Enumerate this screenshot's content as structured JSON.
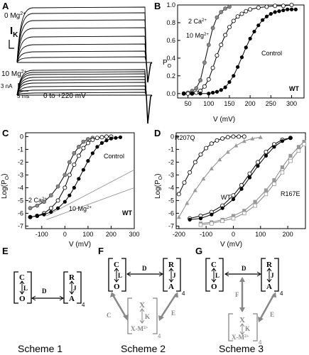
{
  "panels": {
    "A": "A",
    "B": "B",
    "C": "C",
    "D": "D",
    "E": "E",
    "F": "F",
    "G": "G"
  },
  "panelA": {
    "label_top": "0 Mg",
    "label_top_sup": "2+",
    "current_symbol": "I",
    "current_sub": "K",
    "label_bottom": "10 Mg",
    "label_bottom_sup": "2+",
    "scale_current": "3 nA",
    "scale_time": "5 ms",
    "voltage_range": "0 to +220 mV"
  },
  "chart_data": [
    {
      "panel": "B",
      "type": "scatter",
      "xlabel": "V (mV)",
      "ylabel": "P",
      "ylabel_sub": "O",
      "xlim": [
        25,
        330
      ],
      "ylim": [
        -0.05,
        1.0
      ],
      "xticks": [
        50,
        100,
        150,
        200,
        250,
        300
      ],
      "yticks": [
        "0.0",
        "0.2",
        "0.4",
        "0.6",
        "0.8",
        "1.0"
      ],
      "annotation": "WT",
      "series": [
        {
          "name": "2 Ca",
          "name_sup": "2+",
          "marker": "gray-filled",
          "x": [
            40,
            50,
            60,
            70,
            80,
            90,
            100,
            110,
            120,
            130,
            140,
            150
          ],
          "y": [
            0.0,
            0.01,
            0.03,
            0.06,
            0.15,
            0.35,
            0.55,
            0.74,
            0.86,
            0.92,
            0.96,
            0.98
          ]
        },
        {
          "name": "10 Mg",
          "name_sup": "2+",
          "marker": "open",
          "x": [
            40,
            50,
            60,
            70,
            80,
            90,
            100,
            110,
            120,
            130,
            140,
            150,
            160,
            170,
            180,
            190,
            200,
            220,
            240,
            260,
            280,
            300
          ],
          "y": [
            0.0,
            0.0,
            0.0,
            0.01,
            0.03,
            0.08,
            0.16,
            0.29,
            0.43,
            0.55,
            0.66,
            0.75,
            0.82,
            0.87,
            0.9,
            0.93,
            0.95,
            0.97,
            0.98,
            0.99,
            0.99,
            1.0
          ]
        },
        {
          "name": "Control",
          "marker": "black",
          "x": [
            40,
            60,
            80,
            100,
            110,
            120,
            130,
            140,
            150,
            160,
            170,
            180,
            190,
            200,
            210,
            220,
            230,
            240,
            250,
            260,
            270,
            280,
            290,
            300,
            310
          ],
          "y": [
            0.0,
            0.0,
            0.0,
            0.0,
            0.01,
            0.02,
            0.04,
            0.07,
            0.13,
            0.2,
            0.3,
            0.41,
            0.52,
            0.62,
            0.7,
            0.77,
            0.83,
            0.87,
            0.9,
            0.92,
            0.93,
            0.94,
            0.95,
            0.95,
            0.95
          ]
        }
      ]
    },
    {
      "panel": "C",
      "type": "scatter",
      "xlabel": "V (mV)",
      "ylabel": "Log(P",
      "ylabel_sub": "O",
      "ylabel_end": ")",
      "xlim": [
        -170,
        300
      ],
      "ylim": [
        -7.2,
        0.3
      ],
      "xticks": [
        "-100",
        "0",
        "100",
        "200",
        "300"
      ],
      "yticks": [
        "0",
        "-1",
        "-2",
        "-3",
        "-4",
        "-5",
        "-6",
        "-7"
      ],
      "annotation": "WT",
      "series": [
        {
          "name": "2 Ca",
          "name_sup": "2+",
          "marker": "gray-filled",
          "x": [
            -150,
            -120,
            -90,
            -60,
            -30,
            0,
            20,
            40,
            60,
            80,
            100,
            120
          ],
          "y": [
            -5.6,
            -5.4,
            -5.1,
            -4.6,
            -3.9,
            -3.0,
            -2.0,
            -1.3,
            -0.8,
            -0.4,
            -0.2,
            -0.1
          ]
        },
        {
          "name": "10 Mg",
          "name_sup": "2+",
          "marker": "open",
          "x": [
            -150,
            -120,
            -90,
            -60,
            -30,
            0,
            20,
            40,
            60,
            80,
            100,
            120,
            140,
            160,
            180,
            200
          ],
          "y": [
            -6.3,
            -6.2,
            -6.0,
            -5.6,
            -5.0,
            -4.0,
            -3.0,
            -2.2,
            -1.5,
            -0.9,
            -0.5,
            -0.25,
            -0.1,
            -0.05,
            0,
            0
          ]
        },
        {
          "name": "Control",
          "marker": "black",
          "x": [
            -150,
            -120,
            -90,
            -60,
            -30,
            0,
            20,
            40,
            60,
            80,
            100,
            120,
            140,
            160,
            180,
            200,
            220,
            240
          ],
          "y": [
            -6.3,
            -6.2,
            -6.1,
            -5.9,
            -5.6,
            -5.1,
            -4.6,
            -4.0,
            -3.3,
            -2.6,
            -1.9,
            -1.3,
            -0.8,
            -0.5,
            -0.3,
            -0.15,
            -0.1,
            -0.05
          ]
        }
      ]
    },
    {
      "panel": "D",
      "type": "scatter",
      "xlabel": "V (mV)",
      "ylabel": "Log(P",
      "ylabel_sub": "O",
      "ylabel_end": ")",
      "xlim": [
        -210,
        265
      ],
      "ylim": [
        -7.2,
        0.3
      ],
      "xticks": [
        "-200",
        "-100",
        "0",
        "100",
        "200"
      ],
      "yticks": [
        "0",
        "-1",
        "-2",
        "-3",
        "-4",
        "-5",
        "-6",
        "-7"
      ],
      "series": [
        {
          "name": "R207Q",
          "marker": "open",
          "x": [
            -200,
            -180,
            -160,
            -140,
            -120,
            -100,
            -80,
            -60,
            -40,
            -20,
            0,
            20,
            40
          ],
          "y": [
            -4.5,
            -3.6,
            -2.8,
            -2.0,
            -1.4,
            -0.9,
            -0.55,
            -0.3,
            -0.15,
            -0.05,
            0,
            0,
            0
          ]
        },
        {
          "name": "R207Q-gray",
          "marker": "gray-triangle",
          "x": [
            -200,
            -170,
            -140,
            -110,
            -80,
            -50,
            -20,
            10,
            40,
            70,
            100
          ],
          "y": [
            -6.3,
            -5.2,
            -4.2,
            -3.3,
            -2.5,
            -1.8,
            -1.2,
            -0.7,
            -0.35,
            -0.15,
            -0.05
          ]
        },
        {
          "name": "WT",
          "marker": "open",
          "x": [
            -160,
            -120,
            -80,
            -40,
            0,
            30,
            60,
            90,
            120,
            150,
            180,
            210
          ],
          "y": [
            -6.4,
            -6.2,
            -5.9,
            -5.4,
            -4.6,
            -3.8,
            -2.9,
            -2.0,
            -1.2,
            -0.6,
            -0.25,
            -0.1
          ]
        },
        {
          "name": "WT-black",
          "marker": "black",
          "x": [
            -160,
            -120,
            -80,
            -40,
            0,
            30,
            60,
            90,
            120,
            150,
            180,
            210
          ],
          "y": [
            -6.5,
            -6.4,
            -6.1,
            -5.6,
            -4.9,
            -4.1,
            -3.2,
            -2.3,
            -1.5,
            -0.8,
            -0.35,
            -0.1
          ]
        },
        {
          "name": "R167E",
          "marker": "gray-square",
          "x": [
            -120,
            -80,
            -40,
            0,
            40,
            80,
            120,
            150,
            180,
            210,
            240,
            260
          ],
          "y": [
            -6.8,
            -6.7,
            -6.5,
            -6.2,
            -5.8,
            -5.1,
            -4.2,
            -3.4,
            -2.4,
            -1.5,
            -0.8,
            -0.4
          ]
        },
        {
          "name": "R167E-open",
          "marker": "open-square",
          "x": [
            -120,
            -80,
            -40,
            0,
            40,
            80,
            120,
            150,
            180,
            210,
            240,
            260
          ],
          "y": [
            -6.9,
            -6.8,
            -6.6,
            -6.4,
            -6.0,
            -5.4,
            -4.5,
            -3.7,
            -2.8,
            -1.9,
            -1.1,
            -0.6
          ]
        }
      ]
    }
  ],
  "labelsB": {
    "ca": "2 Ca",
    "ca_sup": "2+",
    "mg": "10 Mg",
    "mg_sup": "2+",
    "control": "Control",
    "wt": "WT",
    "xlabel": "V (mV)",
    "ylabel": "P",
    "ylabel_sub": "O"
  },
  "labelsC": {
    "ca": "2 Ca",
    "ca_sup": "2+",
    "mg": "10 Mg",
    "mg_sup": "2+",
    "control": "Control",
    "wt": "WT",
    "xlabel": "V (mV)",
    "ylabel": "Log(P",
    "ylabel_sub": "O",
    "ylabel_end": ")"
  },
  "labelsD": {
    "r207q": "R207Q",
    "wt": "WT",
    "r167e": "R167E",
    "xlabel": "V (mV)",
    "ylabel": "Log(P",
    "ylabel_sub": "O",
    "ylabel_end": ")"
  },
  "schemes": {
    "s1": {
      "caption": "Scheme 1",
      "C": "C",
      "L": "L",
      "O": "O",
      "D": "D",
      "R": "R",
      "J": "J",
      "A": "A",
      "sub": "4"
    },
    "s2": {
      "caption": "Scheme 2",
      "C": "C",
      "L": "L",
      "O": "O",
      "D": "D",
      "R": "R",
      "J": "J",
      "A": "A",
      "sub": "4",
      "X": "X",
      "K": "K",
      "XM": "X-M",
      "XM_sup": "2+",
      "side_left": "C",
      "side_right": "E"
    },
    "s3": {
      "caption": "Scheme 3",
      "C": "C",
      "L": "L",
      "O": "O",
      "D": "D",
      "R": "R",
      "J": "J",
      "A": "A",
      "sub": "4",
      "X": "X",
      "K": "K",
      "XM": "X-M",
      "XM_sup": "2+",
      "F": "F",
      "side_right": "E"
    }
  }
}
